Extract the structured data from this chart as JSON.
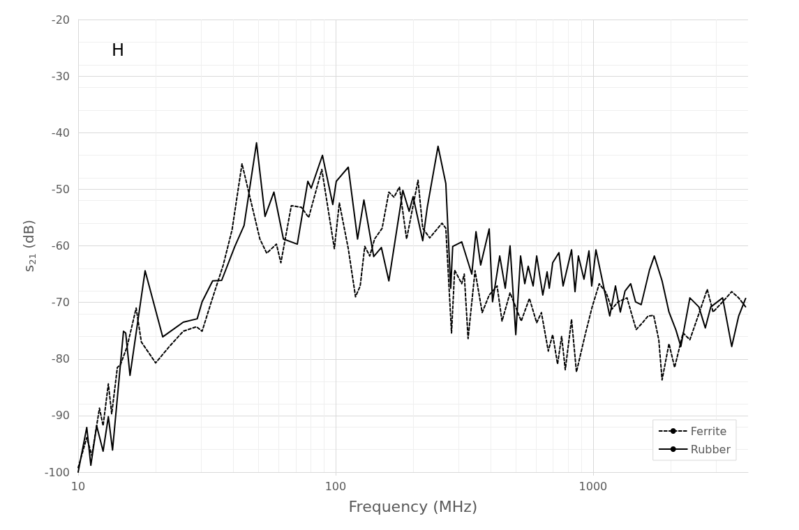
{
  "chart_data": {
    "type": "line",
    "title": "H",
    "xlabel": "Frequency (MHz)",
    "ylabel": "s$_{21}$ (dB)",
    "log": "x",
    "xlim": [
      10,
      4000
    ],
    "xticks": [
      10,
      100,
      1000
    ],
    "ylim": [
      -100,
      -20
    ],
    "yticks": [
      -100,
      -90,
      -80,
      -70,
      -60,
      -50,
      -40,
      -30,
      -20
    ],
    "grid": true,
    "legend": "bottom right",
    "marker": "none",
    "series": [
      {
        "name": "Ferrite",
        "color": "#000000",
        "line_style": "dashed",
        "x": [
          10,
          10.8,
          11.3,
          12.1,
          12.5,
          13.1,
          13.5,
          14.2,
          14.6,
          15.5,
          16.8,
          17.6,
          20,
          22.6,
          25.6,
          28.8,
          30.3,
          32.9,
          36.6,
          39.6,
          43.3,
          46.3,
          50.8,
          54,
          58.9,
          61.3,
          67.3,
          73.7,
          78.6,
          88.4,
          98.9,
          103.4,
          112,
          119.5,
          124.6,
          129.8,
          135.7,
          141.7,
          151.6,
          161,
          168.6,
          177,
          188.7,
          209,
          218,
          232,
          259,
          268,
          282,
          290,
          309,
          316,
          327,
          348,
          371,
          395,
          424,
          443,
          476,
          526,
          566,
          604,
          630,
          670,
          697,
          728,
          755,
          780,
          825,
          862,
          894,
          932,
          992,
          1057,
          1125,
          1183,
          1250,
          1355,
          1419,
          1471,
          1556,
          1636,
          1720,
          1800,
          1854,
          1972,
          2074,
          2236,
          2377,
          2577,
          2777,
          2925,
          3186,
          3456,
          3679,
          3914
        ],
        "values": [
          -99.2,
          -93.9,
          -97.1,
          -88.7,
          -91.8,
          -84.4,
          -89.7,
          -81.5,
          -81,
          -77.8,
          -71,
          -77,
          -80.7,
          -77.8,
          -75.1,
          -74.3,
          -75.1,
          -69.9,
          -63.4,
          -57.2,
          -45.5,
          -51.1,
          -58.8,
          -61.3,
          -59.7,
          -63,
          -52.9,
          -53.2,
          -55,
          -46.5,
          -60.5,
          -52.4,
          -60.5,
          -69,
          -67.1,
          -60.1,
          -61.8,
          -58.8,
          -56.9,
          -50.5,
          -51.4,
          -49.6,
          -58.8,
          -48.4,
          -56.9,
          -58.6,
          -56,
          -56.9,
          -75.4,
          -64.3,
          -66.7,
          -65,
          -76.4,
          -64.4,
          -71.8,
          -68.7,
          -67.1,
          -73.3,
          -68.3,
          -73.3,
          -69.3,
          -73.6,
          -71.8,
          -78.6,
          -75.7,
          -80.9,
          -76,
          -81.9,
          -73,
          -82.3,
          -79.2,
          -75.7,
          -70.8,
          -66.7,
          -68.3,
          -71.2,
          -69.9,
          -69.2,
          -72.4,
          -74.8,
          -73.6,
          -72.4,
          -72.3,
          -76.6,
          -83.7,
          -77.3,
          -81.5,
          -75.4,
          -76.6,
          -72,
          -67.7,
          -71.7,
          -69.9,
          -68.1,
          -69.2,
          -70.8
        ]
      },
      {
        "name": "Rubber",
        "color": "#000000",
        "line_style": "solid",
        "x": [
          10,
          10.8,
          11.2,
          11.8,
          12.5,
          13.1,
          13.6,
          15,
          15.3,
          15.9,
          18.2,
          21.3,
          25.6,
          29,
          30.3,
          33.3,
          36.1,
          40.6,
          44.1,
          49.3,
          53.2,
          57.6,
          62.7,
          71,
          78,
          80.4,
          88.9,
          97.5,
          100.6,
          112,
          121.7,
          128.8,
          140.6,
          150.6,
          161,
          182.5,
          193,
          200,
          218,
          227,
          250,
          268,
          280,
          285,
          309,
          338,
          351,
          366,
          395,
          407,
          434,
          456,
          476,
          501,
          523,
          543,
          560,
          585,
          604,
          638,
          663,
          676,
          697,
          737,
          765,
          825,
          851,
          877,
          922,
          964,
          988,
          1026,
          1091,
          1161,
          1222,
          1276,
          1331,
          1400,
          1462,
          1538,
          1656,
          1730,
          1854,
          1972,
          2099,
          2193,
          2377,
          2577,
          2729,
          2866,
          3186,
          3456,
          3679,
          3914
        ],
        "values": [
          -100,
          -92.1,
          -98.8,
          -91.8,
          -96.3,
          -90.2,
          -96.1,
          -75.1,
          -75.4,
          -82.9,
          -64.4,
          -76.1,
          -73.5,
          -72.9,
          -69.9,
          -66.2,
          -66.1,
          -60.1,
          -56.4,
          -41.8,
          -54.8,
          -50.5,
          -58.8,
          -59.7,
          -48.6,
          -49.8,
          -44,
          -52.7,
          -48.6,
          -46.1,
          -58.8,
          -51.9,
          -61.9,
          -60.3,
          -66.2,
          -50.2,
          -53.9,
          -51.3,
          -59.1,
          -53.2,
          -42.4,
          -49,
          -67.5,
          -60.1,
          -59.3,
          -65,
          -57.5,
          -63.4,
          -57,
          -69.9,
          -61.8,
          -67.5,
          -60,
          -75.7,
          -61.8,
          -66.7,
          -63.6,
          -67.1,
          -61.8,
          -68.7,
          -64.6,
          -67.5,
          -63,
          -61.2,
          -67.1,
          -60.7,
          -68.1,
          -61.8,
          -65.9,
          -60.9,
          -67.1,
          -60.7,
          -66.5,
          -72.4,
          -67.1,
          -71.7,
          -68,
          -66.7,
          -69.9,
          -70.4,
          -64.3,
          -61.8,
          -66.2,
          -71.7,
          -74.9,
          -77.8,
          -69.2,
          -70.8,
          -74.5,
          -70.8,
          -69.2,
          -77.8,
          -72.4,
          -69.3
        ]
      }
    ]
  }
}
